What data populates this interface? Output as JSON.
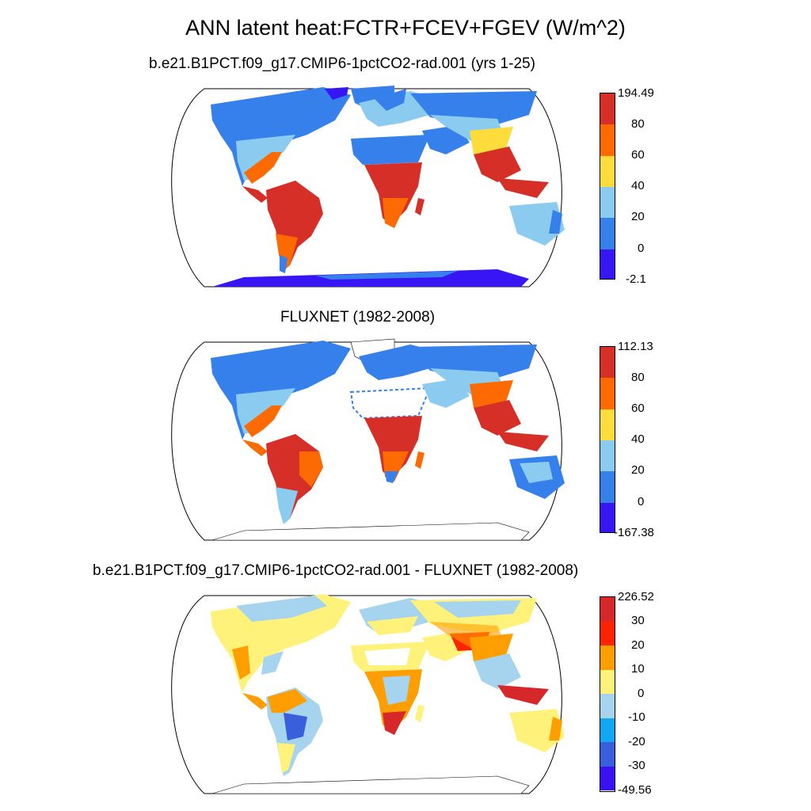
{
  "title": "ANN latent heat:FCTR+FCEV+FGEV (W/m^2)",
  "panels": [
    {
      "subtitle": "b.e21.B1PCT.f09_g17.CMIP6-1pctCO2-rad.001 (yrs 1-25)",
      "colorbar": {
        "labels": [
          "194.49",
          "80",
          "60",
          "40",
          "20",
          "0",
          "-2.1"
        ],
        "colors": [
          "#d62f27",
          "#fd6a02",
          "#fedc3c",
          "#8ccbf0",
          "#3580ea",
          "#3815f5"
        ]
      }
    },
    {
      "subtitle": "FLUXNET (1982-2008)",
      "colorbar": {
        "labels": [
          "112.13",
          "80",
          "60",
          "40",
          "20",
          "0",
          "-167.38"
        ],
        "colors": [
          "#d62f27",
          "#fd6a02",
          "#fedc3c",
          "#8ccbf0",
          "#3580ea",
          "#3815f5"
        ]
      }
    },
    {
      "subtitle": "b.e21.B1PCT.f09_g17.CMIP6-1pctCO2-rad.001 - FLUXNET (1982-2008)",
      "colorbar": {
        "labels": [
          "226.52",
          "30",
          "20",
          "10",
          "0",
          "-10",
          "-20",
          "-30",
          "-49.56"
        ],
        "colors": [
          "#d6282a",
          "#ff2400",
          "#ff9e00",
          "#fff27a",
          "#a6d3ee",
          "#12a7f2",
          "#3a5fdc",
          "#3a12f2"
        ]
      }
    }
  ]
}
